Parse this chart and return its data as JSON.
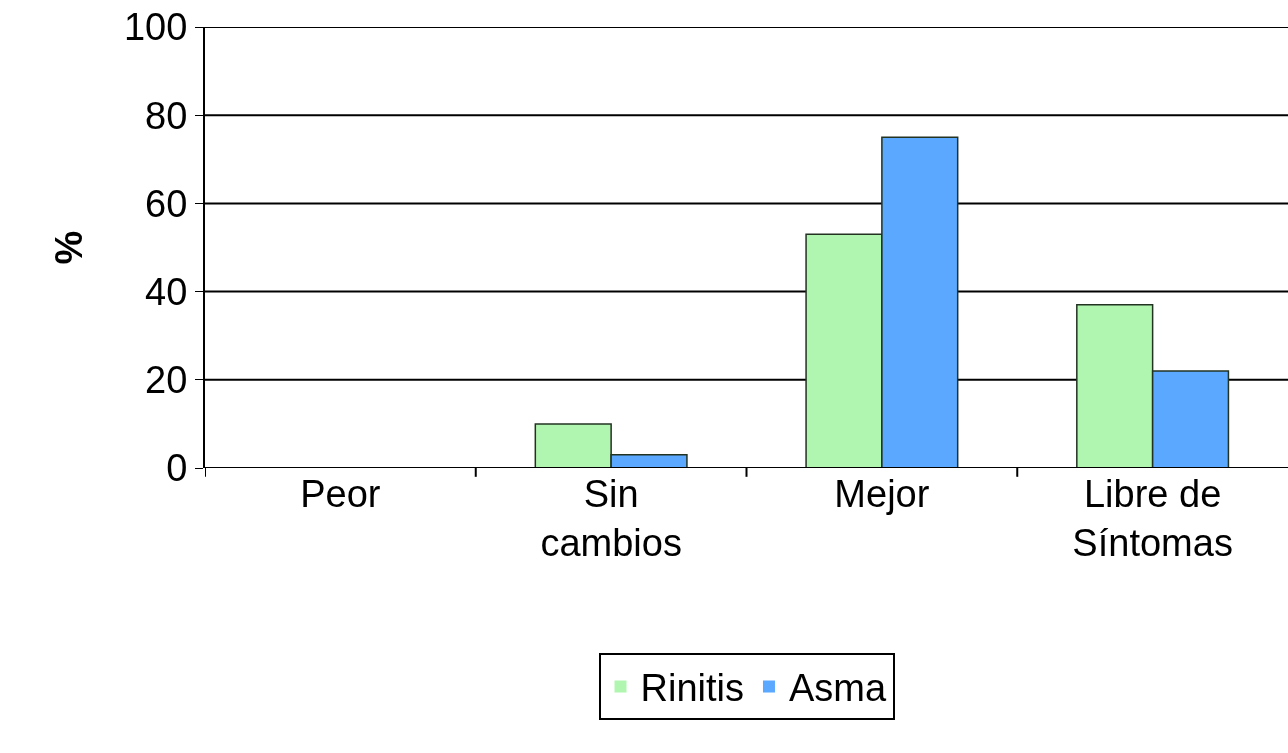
{
  "chart_data": {
    "type": "bar",
    "ylabel": "%",
    "categories": [
      "Peor",
      "Sin\ncambios",
      "Mejor",
      "Libre de\nSíntomas"
    ],
    "series": [
      {
        "name": "Rinitis",
        "color": "#b0f5b0",
        "values": [
          0,
          10,
          53,
          37
        ]
      },
      {
        "name": "Asma",
        "color": "#5aa8ff",
        "values": [
          0,
          3,
          75,
          22
        ]
      }
    ],
    "ylim": [
      0,
      100
    ],
    "yticks": [
      0,
      20,
      40,
      60,
      80,
      100
    ],
    "grid": "y",
    "legend": "bottom"
  }
}
